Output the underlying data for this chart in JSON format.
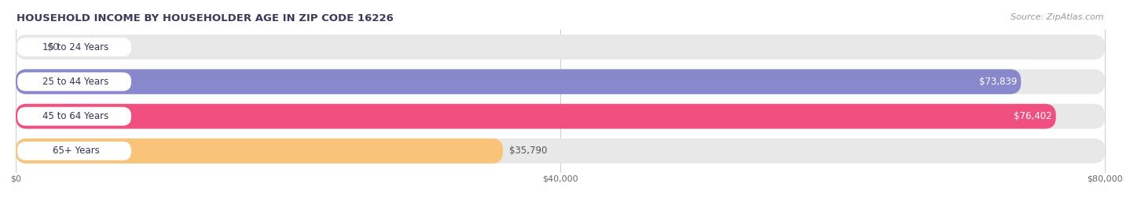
{
  "title": "HOUSEHOLD INCOME BY HOUSEHOLDER AGE IN ZIP CODE 16226",
  "source": "Source: ZipAtlas.com",
  "categories": [
    "15 to 24 Years",
    "25 to 44 Years",
    "45 to 64 Years",
    "65+ Years"
  ],
  "values": [
    0,
    73839,
    76402,
    35790
  ],
  "bar_colors": [
    "#6ecfcf",
    "#8888cc",
    "#f05080",
    "#f9c47a"
  ],
  "xmax": 80000,
  "xticks": [
    0,
    40000,
    80000
  ],
  "xtick_labels": [
    "$0",
    "$40,000",
    "$80,000"
  ],
  "value_labels": [
    "$0",
    "$73,839",
    "$76,402",
    "$35,790"
  ],
  "bar_bg_color": "#e8e8e8",
  "title_color": "#3a3a5a",
  "source_color": "#999999",
  "label_bg_color": "#ffffff",
  "label_text_color": "#333355"
}
